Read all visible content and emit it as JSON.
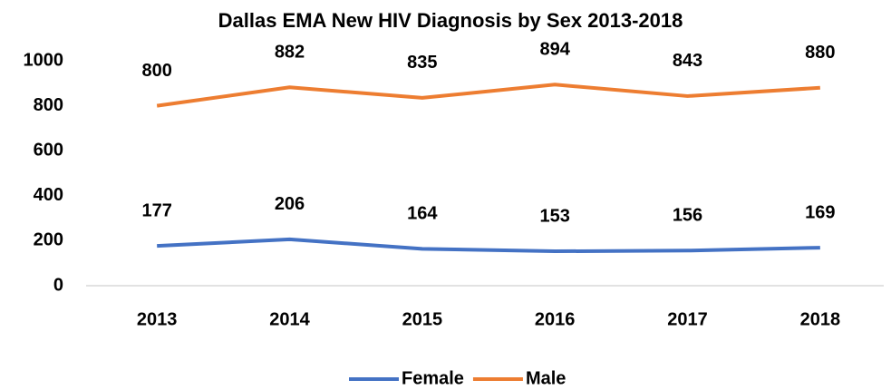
{
  "chart_data": {
    "type": "line",
    "title": "Dallas EMA New HIV Diagnosis by Sex 2013-2018",
    "categories": [
      "2013",
      "2014",
      "2015",
      "2016",
      "2017",
      "2018"
    ],
    "series": [
      {
        "name": "Female",
        "color": "#4472c4",
        "values": [
          177,
          206,
          164,
          153,
          156,
          169
        ]
      },
      {
        "name": "Male",
        "color": "#ed7d31",
        "values": [
          800,
          882,
          835,
          894,
          843,
          880
        ]
      }
    ],
    "ylim": [
      0,
      1000
    ],
    "yticks": [
      0,
      200,
      400,
      600,
      800,
      1000
    ],
    "grid": false,
    "legend": "bottom"
  }
}
